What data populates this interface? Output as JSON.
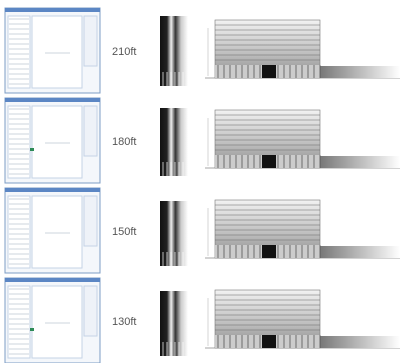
{
  "rows": [
    {
      "label": "210ft"
    },
    {
      "label": "180ft"
    },
    {
      "label": "150ft"
    },
    {
      "label": "130ft"
    }
  ]
}
